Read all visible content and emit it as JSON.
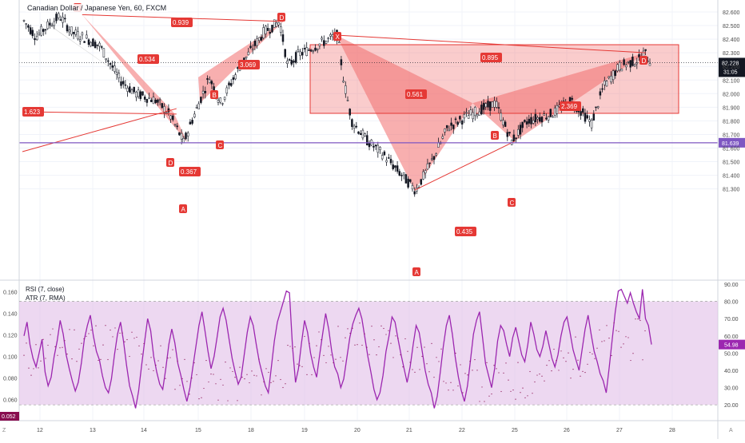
{
  "header": {
    "symbol_title": "Canadian Dollar / Japanese Yen, 60, FXCM"
  },
  "indicators": {
    "rsi_label": "RSI (7, close)",
    "atr_label": "ATR (7, RMA)",
    "rsi_last": "54.98",
    "atr_last": "0.052"
  },
  "price_axis": {
    "ticks": [
      "82.600",
      "82.500",
      "82.400",
      "82.300",
      "82.200",
      "82.100",
      "82.000",
      "81.900",
      "81.800",
      "81.700",
      "81.600",
      "81.500",
      "81.400",
      "81.300"
    ],
    "last_price": "82.228",
    "countdown": "31:05",
    "level_label": "81.639"
  },
  "rsi_axis": {
    "ticks": [
      "90.00",
      "80.00",
      "70.00",
      "60.00",
      "50.00",
      "40.00",
      "30.00",
      "20.00"
    ]
  },
  "atr_axis": {
    "ticks": [
      "0.160",
      "0.140",
      "0.120",
      "0.100",
      "0.080",
      "0.060"
    ]
  },
  "time_axis": {
    "labels": [
      "12",
      "13",
      "14",
      "15",
      "18",
      "19",
      "20",
      "21",
      "22",
      "25",
      "26",
      "27",
      "28"
    ]
  },
  "corner_labels": {
    "left": "Z",
    "right": "A"
  },
  "patterns": [
    {
      "name": "pattern-1",
      "points": [
        "X",
        "A",
        "B",
        "C",
        "D"
      ],
      "label_letters": [
        "D",
        "A",
        "B",
        "C"
      ],
      "ratios": [
        "1.623",
        "0.367"
      ]
    },
    {
      "name": "pattern-2",
      "points": [
        "A",
        "B",
        "C",
        "D"
      ],
      "ratios": [
        "0.534",
        "0.939",
        "3.069"
      ]
    },
    {
      "name": "pattern-3",
      "points": [
        "X",
        "A",
        "B",
        "C",
        "D"
      ],
      "ratios": [
        "0.561",
        "0.895",
        "0.435",
        "2.369"
      ]
    }
  ],
  "colors": {
    "pattern_fill": "#f26d6d",
    "pattern_fill_grey": "#9e9e9e",
    "pattern_line": "#e53935",
    "level_line": "#7e57c2",
    "rsi_line": "#9c27b0",
    "rsi_band": "#e1bee7",
    "atr_dots": "#880e4f",
    "candle": "#131722",
    "badge_bg": "#e53935",
    "badge_text": "#ffffff",
    "last_price_bg": "#131722"
  },
  "chart_data": {
    "type": "candlestick",
    "title": "Canadian Dollar / Japanese Yen, 60, FXCM",
    "ylim": [
      81.25,
      82.65
    ],
    "horizontal_level": 81.639,
    "last_price": 82.228,
    "pattern_points": {
      "p1": {
        "X": [
          "12",
          82.55
        ],
        "A": [
          "14.8",
          81.64
        ],
        "B": [
          "15",
          82.12
        ],
        "C": [
          "15.1",
          81.93
        ],
        "D": [
          "14.6",
          81.85
        ]
      },
      "p2": {
        "A": [
          "14.8",
          81.64
        ],
        "B": [
          "15",
          82.12
        ],
        "C": [
          "15.1",
          81.93
        ],
        "D": [
          "18.6",
          82.53
        ]
      },
      "p3": {
        "X": [
          "19.6",
          82.43
        ],
        "A": [
          "21.1",
          81.29
        ],
        "B": [
          "22.6",
          81.93
        ],
        "C": [
          "25",
          81.65
        ],
        "D": [
          "27.5",
          82.3
        ]
      }
    },
    "rsi": {
      "range": [
        15,
        90
      ],
      "overbought": 80,
      "oversold": 20,
      "last": 54.98,
      "values": [
        60,
        68,
        55,
        47,
        42,
        50,
        58,
        39,
        31,
        36,
        48,
        57,
        69,
        61,
        49,
        41,
        34,
        28,
        33,
        44,
        58,
        66,
        72,
        60,
        51,
        46,
        37,
        30,
        27,
        35,
        49,
        61,
        68,
        57,
        43,
        31,
        25,
        18,
        28,
        43,
        57,
        70,
        63,
        48,
        39,
        32,
        29,
        41,
        55,
        64,
        56,
        44,
        37,
        29,
        22,
        30,
        42,
        54,
        66,
        74,
        63,
        51,
        41,
        48,
        59,
        71,
        76,
        69,
        58,
        47,
        39,
        32,
        36,
        49,
        62,
        71,
        66,
        55,
        45,
        38,
        31,
        27,
        42,
        57,
        68,
        74,
        80,
        86,
        85,
        54,
        33,
        41,
        56,
        69,
        62,
        50,
        42,
        36,
        49,
        61,
        73,
        64,
        51,
        42,
        38,
        30,
        35,
        47,
        59,
        67,
        72,
        76,
        70,
        59,
        48,
        39,
        29,
        23,
        27,
        37,
        51,
        60,
        71,
        68,
        58,
        49,
        41,
        33,
        42,
        55,
        66,
        62,
        51,
        40,
        32,
        27,
        18,
        25,
        39,
        54,
        66,
        72,
        61,
        47,
        36,
        28,
        22,
        31,
        46,
        61,
        69,
        74,
        59,
        44,
        37,
        30,
        41,
        57,
        66,
        63,
        55,
        48,
        59,
        65,
        57,
        49,
        45,
        55,
        68,
        61,
        52,
        48,
        54,
        63,
        55,
        47,
        42,
        49,
        60,
        68,
        71,
        62,
        52,
        46,
        40,
        52,
        64,
        72,
        61,
        51,
        45,
        38,
        34,
        27,
        42,
        58,
        74,
        86,
        87,
        83,
        79,
        85,
        79,
        74,
        70,
        87,
        70,
        66,
        55
      ]
    },
    "atr": {
      "range": [
        0.047,
        0.167
      ],
      "last": 0.052
    }
  }
}
